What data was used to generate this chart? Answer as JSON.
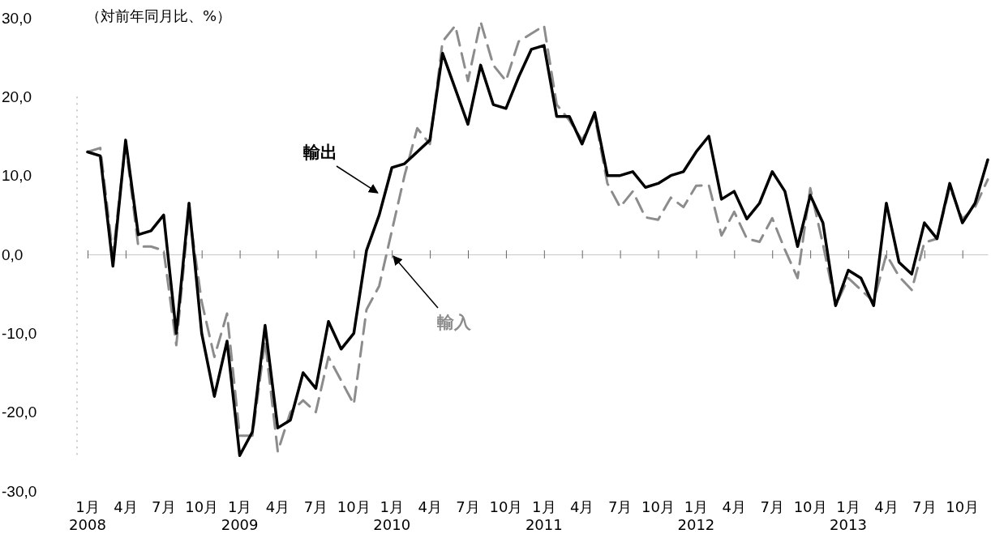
{
  "chart_data": {
    "type": "line",
    "ylabel": "（対前年同月比、%）",
    "categories": [
      "1月\n2008",
      null,
      null,
      "4月",
      null,
      null,
      "7月",
      null,
      null,
      "10月",
      null,
      null,
      "1月\n2009",
      null,
      null,
      "4月",
      null,
      null,
      "7月",
      null,
      null,
      "10月",
      null,
      null,
      "1月\n2010",
      null,
      null,
      "4月",
      null,
      null,
      "7月",
      null,
      null,
      "10月",
      null,
      null,
      "1月\n2011",
      null,
      null,
      "4月",
      null,
      null,
      "7月",
      null,
      null,
      "10月",
      null,
      null,
      "1月\n2012",
      null,
      null,
      "4月",
      null,
      null,
      "7月",
      null,
      null,
      "10月",
      null,
      null,
      "1月\n2013",
      null,
      null,
      "4月",
      null,
      null,
      "7月",
      null,
      null,
      "10月",
      null,
      null
    ],
    "series": [
      {
        "name": "輸出",
        "color": "#000000",
        "line_style": "solid",
        "values": [
          13,
          12.5,
          -1.5,
          14.5,
          2.5,
          3,
          5,
          -10,
          6.5,
          -10,
          -18,
          -11,
          -25.5,
          -22.5,
          -9,
          -22,
          -21,
          -15,
          -17,
          -8.5,
          -12,
          -10,
          0.5,
          5,
          11,
          11.5,
          13,
          14.5,
          25.5,
          21,
          16.5,
          24,
          19,
          18.5,
          22.5,
          26,
          26.5,
          17.5,
          17.5,
          14,
          18,
          10,
          10,
          10.5,
          8.5,
          9,
          10,
          10.5,
          13,
          15,
          7,
          8,
          4.5,
          6.5,
          10.5,
          8,
          1,
          7.5,
          4,
          -6.5,
          -2,
          -3,
          -6.5,
          6.5,
          -1,
          -2.5,
          4,
          2,
          9,
          4,
          6.5,
          12
        ]
      },
      {
        "name": "輸入",
        "color": "#8c8c8c",
        "line_style": "dashed",
        "values": [
          13,
          13.5,
          0,
          14,
          1,
          1,
          0.5,
          -11.5,
          5.5,
          -6,
          -13,
          -7.5,
          -23,
          -23,
          -11,
          -25,
          -20,
          -18.5,
          -20,
          -13,
          -16,
          -19,
          -7,
          -4,
          3,
          10,
          16,
          14,
          27,
          29,
          22,
          29.5,
          24,
          22,
          27,
          28,
          29,
          19,
          17,
          14.5,
          17.5,
          9,
          6,
          8,
          4.7,
          4.4,
          7.2,
          6,
          8.7,
          8.8,
          2.4,
          5.4,
          2,
          1.6,
          4.6,
          0.6,
          -3,
          8.4,
          1.3,
          -6.5,
          -3,
          -4.5,
          -6,
          0,
          -2.8,
          -4.5,
          1.5,
          2,
          8.5,
          4.5,
          6,
          9.5
        ]
      }
    ],
    "ylim": [
      -30,
      30
    ],
    "yticks": [
      {
        "value": -30,
        "label": "-30,0"
      },
      {
        "value": -20,
        "label": "-20,0"
      },
      {
        "value": -10,
        "label": "-10,0"
      },
      {
        "value": 0,
        "label": "0,0"
      },
      {
        "value": 10,
        "label": "10,0"
      },
      {
        "value": 20,
        "label": "20,0"
      },
      {
        "value": 30,
        "label": "30,0"
      }
    ],
    "grid": false,
    "legend": false,
    "marker": "none"
  }
}
